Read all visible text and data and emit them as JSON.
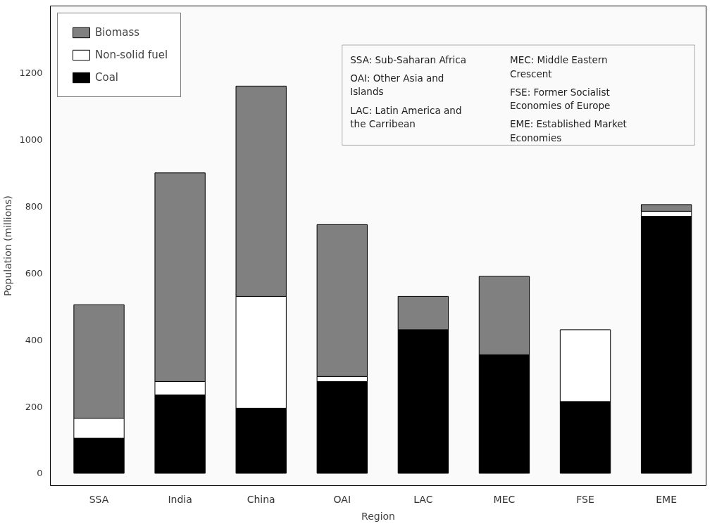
{
  "chart_data": {
    "type": "bar",
    "stacked": true,
    "xlabel": "Region",
    "ylabel": "Population (millions)",
    "categories": [
      "SSA",
      "India",
      "China",
      "OAI",
      "LAC",
      "MEC",
      "FSE",
      "EME"
    ],
    "series": [
      {
        "name": "Coal",
        "color": "#000000",
        "values": [
          105,
          235,
          195,
          275,
          430,
          355,
          215,
          770
        ]
      },
      {
        "name": "Non-solid fuel",
        "color": "#ffffff",
        "values": [
          60,
          40,
          335,
          15,
          null,
          null,
          215,
          15
        ]
      },
      {
        "name": "Biomass",
        "color": "#808080",
        "values": [
          340,
          625,
          630,
          455,
          100,
          235,
          null,
          20
        ]
      }
    ],
    "ylim": [
      -37,
      1400
    ],
    "yticks": [
      0,
      200,
      400,
      600,
      800,
      1000,
      1200
    ],
    "grid": false,
    "legend": "top left",
    "annotations": [
      "SSA: Sub-Saharan Africa",
      "OAI: Other Asia and Islands",
      "LAC: Latin America and the Carribean",
      "MEC: Middle Eastern Crescent",
      "FSE: Former Socialist Economies of Europe",
      "EME: Established Market Economies"
    ]
  }
}
